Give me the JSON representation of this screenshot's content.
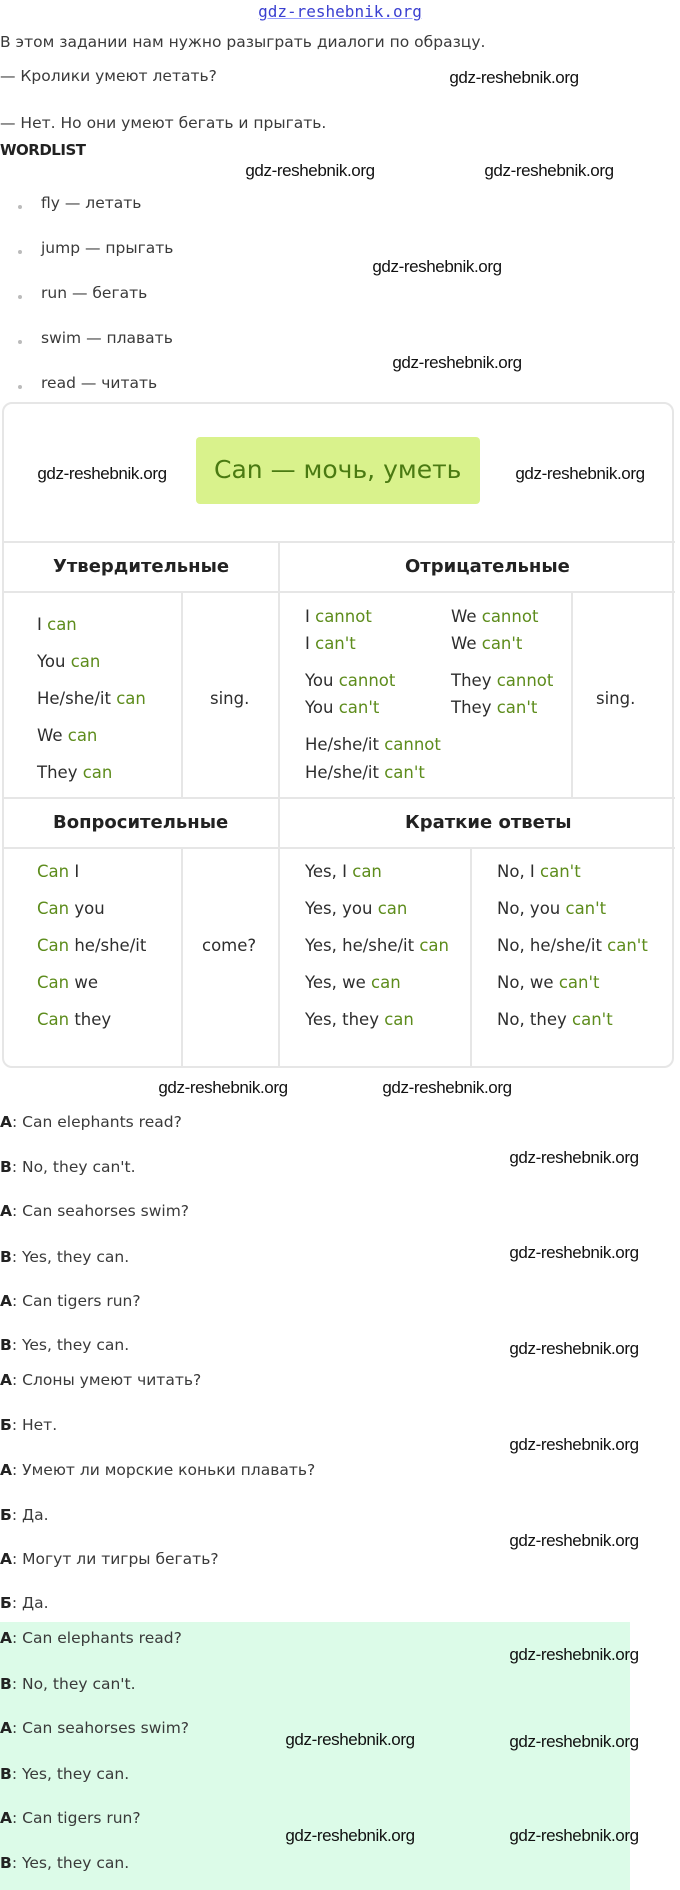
{
  "site_header": "gdz-reshebnik.org",
  "intro": "В этом задании нам нужно разыграть диалоги по образцу.",
  "example": {
    "question": "— Кролики умеют летать?",
    "answer": "— Нет. Но они умеют бегать и прыгать."
  },
  "wordlist": {
    "title": "WORDLIST",
    "items": [
      "fly — летать",
      "jump — прыгать",
      "run — бегать",
      "swim — плавать",
      "read — читать"
    ]
  },
  "table": {
    "title_word": "Can",
    "title_rest": " — мочь, уметь",
    "affirmative": {
      "header": "Утвердительные",
      "rows": [
        {
          "subj": "I ",
          "verb": "can"
        },
        {
          "subj": "You ",
          "verb": "can"
        },
        {
          "subj": "He/she/it ",
          "verb": "can"
        },
        {
          "subj": "We ",
          "verb": "can"
        },
        {
          "subj": "They ",
          "verb": "can"
        }
      ],
      "main_verb": "sing."
    },
    "negative": {
      "header": "Отрицательные",
      "col1": [
        {
          "subj": "I ",
          "verb": "cannot"
        },
        {
          "subj": "I ",
          "verb": "can't"
        },
        {
          "subj": "You ",
          "verb": "cannot"
        },
        {
          "subj": "You ",
          "verb": "can't"
        },
        {
          "subj": "He/she/it ",
          "verb": "cannot"
        },
        {
          "subj": "He/she/it ",
          "verb": "can't"
        }
      ],
      "col2": [
        {
          "subj": "We ",
          "verb": "cannot"
        },
        {
          "subj": "We ",
          "verb": "can't"
        },
        {
          "subj": "They ",
          "verb": "cannot"
        },
        {
          "subj": "They ",
          "verb": "can't"
        }
      ],
      "main_verb": "sing."
    },
    "interrogative": {
      "header": "Вопросительные",
      "rows": [
        {
          "verb": "Can",
          "subj": " I"
        },
        {
          "verb": "Can",
          "subj": " you"
        },
        {
          "verb": "Can",
          "subj": " he/she/it"
        },
        {
          "verb": "Can",
          "subj": " we"
        },
        {
          "verb": "Can",
          "subj": " they"
        }
      ],
      "main_verb": "come?"
    },
    "short_answers": {
      "header": "Краткие ответы",
      "yes": [
        {
          "subj": "Yes, I ",
          "verb": "can"
        },
        {
          "subj": "Yes, you ",
          "verb": "can"
        },
        {
          "subj": "Yes, he/she/it ",
          "verb": "can"
        },
        {
          "subj": "Yes, we ",
          "verb": "can"
        },
        {
          "subj": "Yes, they ",
          "verb": "can"
        }
      ],
      "no": [
        {
          "subj": "No, I ",
          "verb": "can't"
        },
        {
          "subj": "No, you ",
          "verb": "can't"
        },
        {
          "subj": "No, he/she/it ",
          "verb": "can't"
        },
        {
          "subj": "No, we ",
          "verb": "can't"
        },
        {
          "subj": "No, they ",
          "verb": "can't"
        }
      ]
    }
  },
  "dialogues": [
    {
      "speaker": "A",
      "text": "Can elephants read?"
    },
    {
      "speaker": "B",
      "text": "No, they can't."
    },
    {
      "speaker": "A",
      "text": "Can seahorses swim?"
    },
    {
      "speaker": "B",
      "text": "Yes, they can."
    },
    {
      "speaker": "A",
      "text": "Can tigers run?"
    },
    {
      "speaker": "B",
      "text": "Yes, they can."
    },
    {
      "speaker": "A",
      "text": "Слоны умеют читать?"
    },
    {
      "speaker": "Б",
      "text": "Нет."
    },
    {
      "speaker": "A",
      "text": "Умеют ли морские коньки плавать?"
    },
    {
      "speaker": "Б",
      "text": "Да."
    },
    {
      "speaker": "A",
      "text": "Могут ли тигры бегать?"
    },
    {
      "speaker": "Б",
      "text": "Да."
    }
  ],
  "answer_block": {
    "background": "#dcfbe8",
    "lines": [
      {
        "speaker": "A",
        "text": "Can elephants read?"
      },
      {
        "speaker": "B",
        "text": "No, they can't."
      },
      {
        "speaker": "A",
        "text": "Can seahorses swim?"
      },
      {
        "speaker": "B",
        "text": "Yes, they can."
      },
      {
        "speaker": "A",
        "text": "Can tigers run?"
      },
      {
        "speaker": "B",
        "text": "Yes, they can."
      }
    ]
  },
  "watermark": "gdz-reshebnik.org",
  "colors": {
    "accent_green": "#5d8c1c",
    "title_bg": "#d9f28c",
    "answer_bg": "#dcfbe8",
    "link_blue": "#3a3fd0"
  }
}
